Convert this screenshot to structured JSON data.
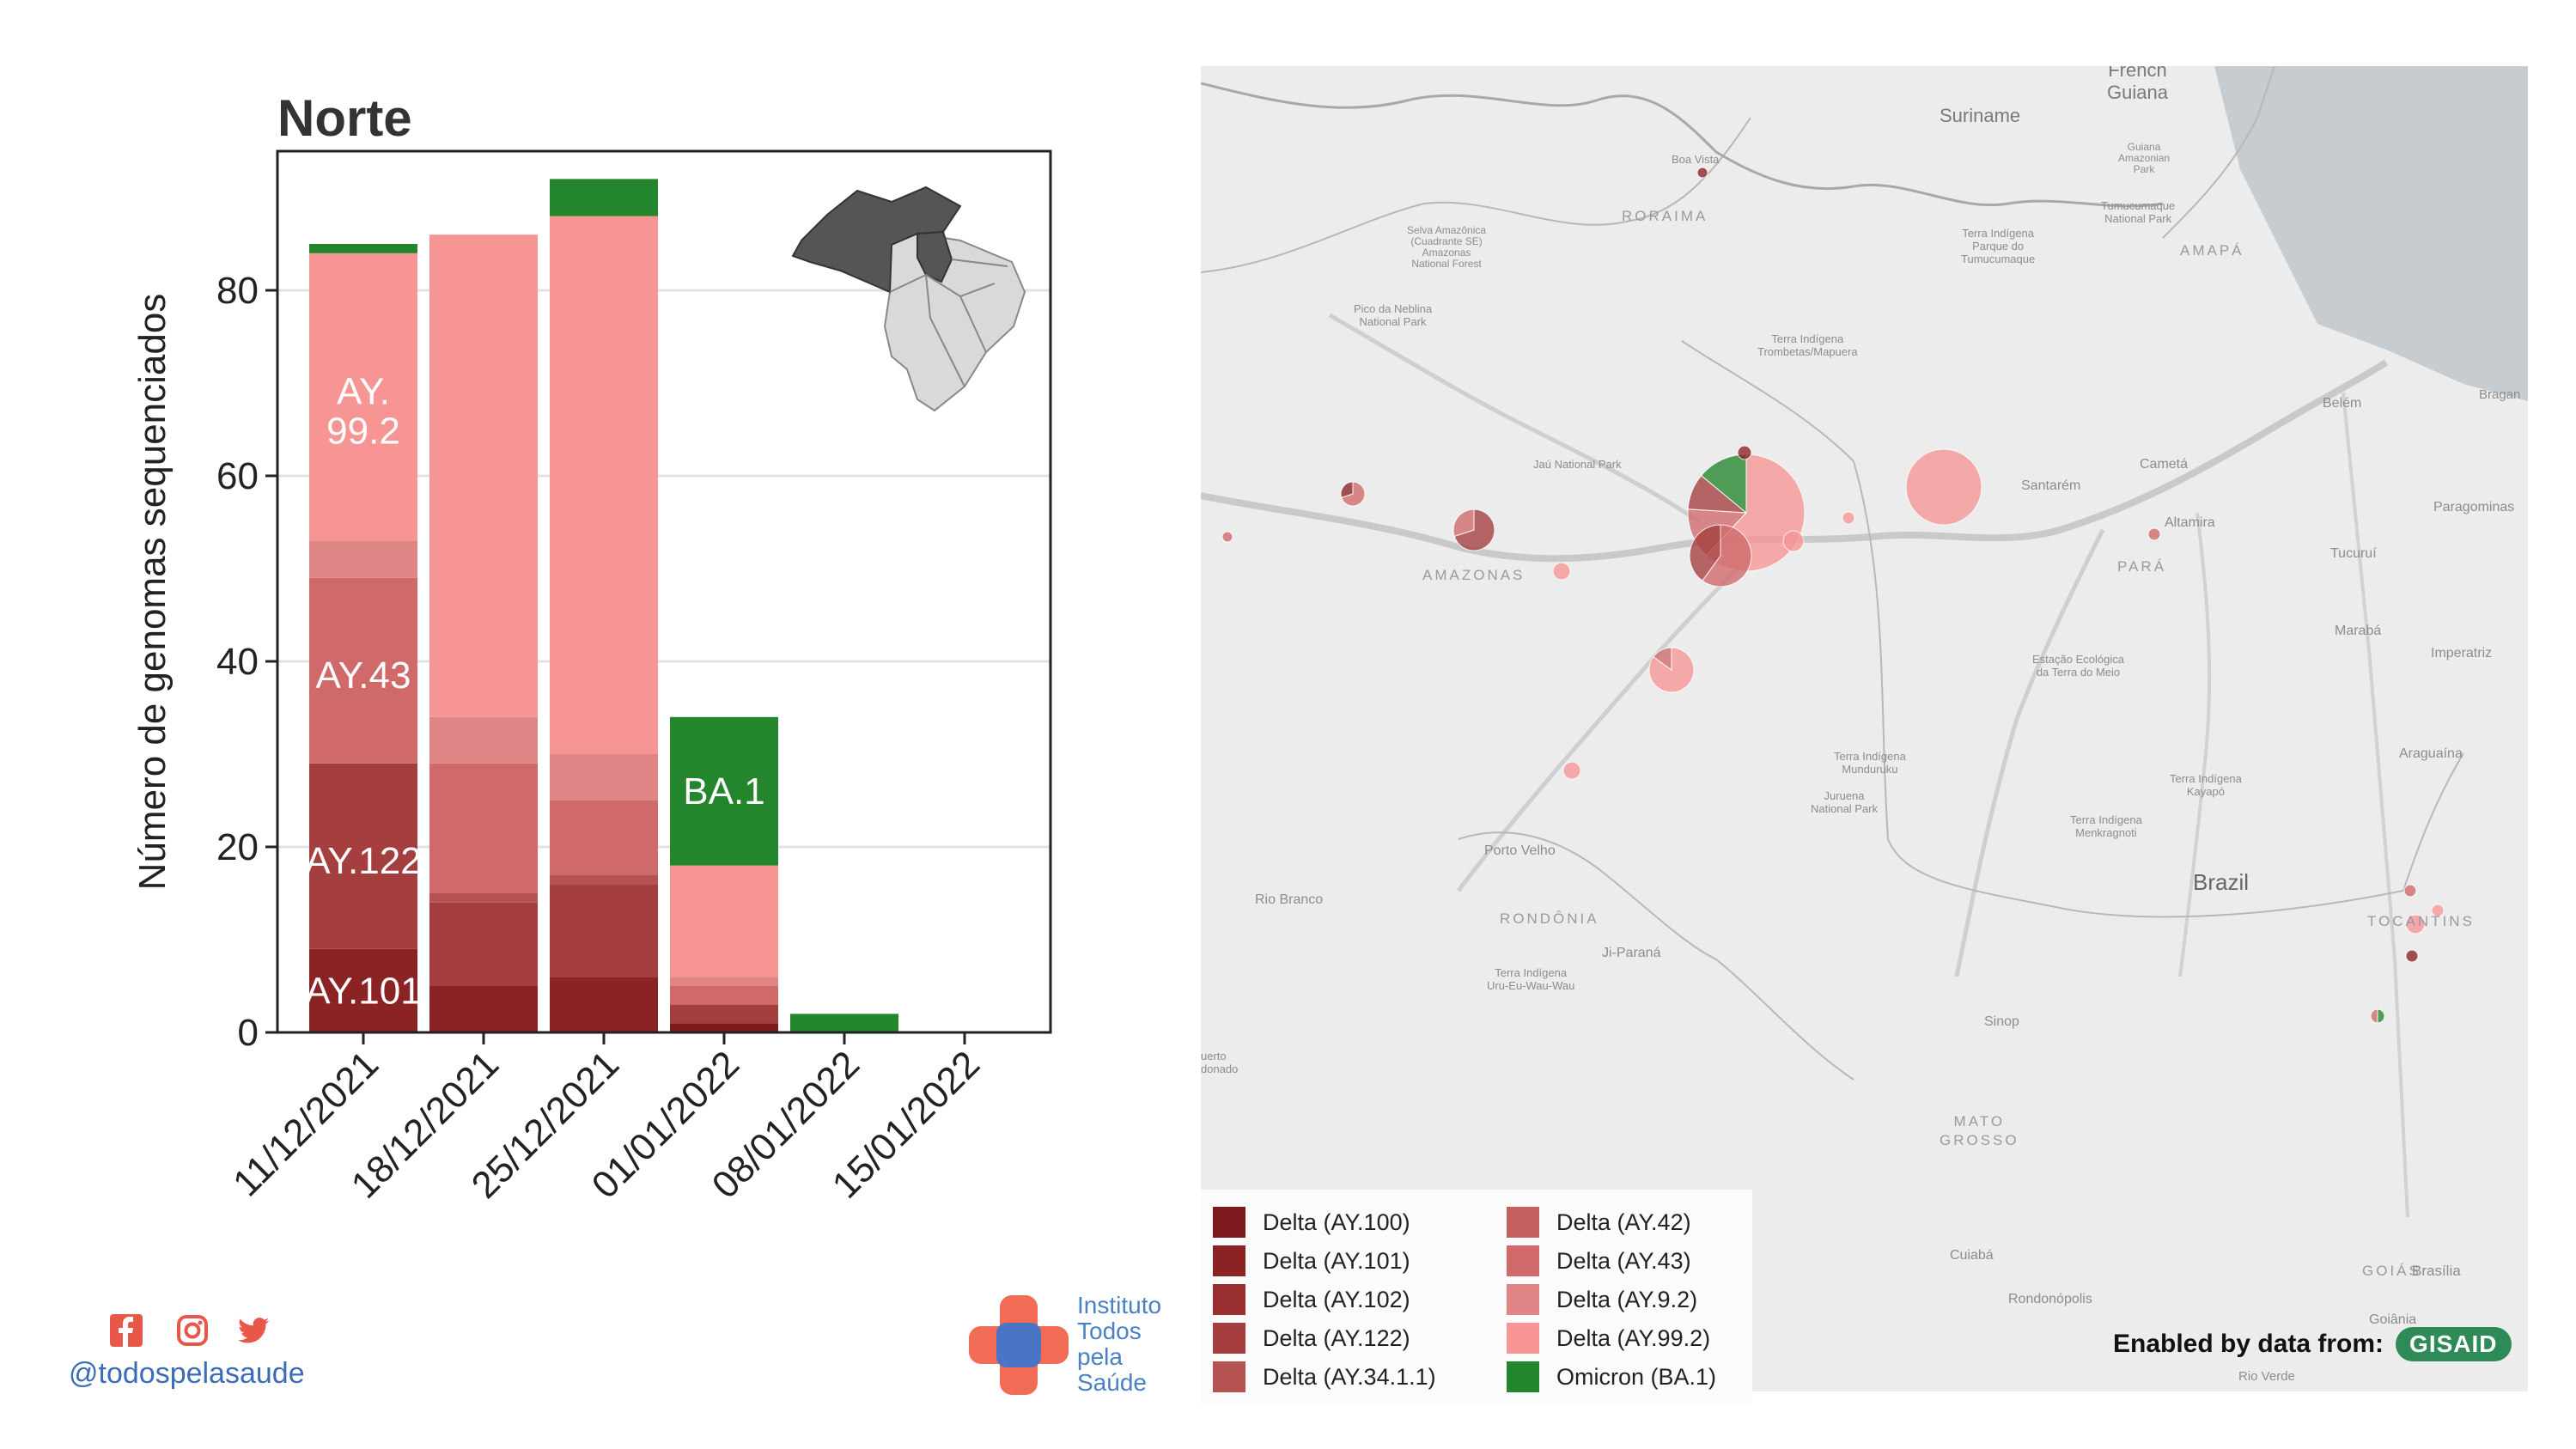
{
  "chart_data": {
    "type": "bar",
    "title": "Norte",
    "ylabel": "Número de genomas sequenciados",
    "xlabel": "",
    "ylim": [
      0,
      95
    ],
    "yticks": [
      0,
      20,
      40,
      60,
      80
    ],
    "categories": [
      "11/12/2021",
      "18/12/2021",
      "25/12/2021",
      "01/01/2022",
      "08/01/2022",
      "15/01/2022"
    ],
    "series": [
      {
        "name": "Delta (AY.100)",
        "color": "#7d1a1d",
        "values": [
          0,
          0,
          0,
          1,
          0,
          0
        ]
      },
      {
        "name": "Delta (AY.101)",
        "color": "#8b2325",
        "values": [
          9,
          5,
          6,
          0,
          0,
          0
        ]
      },
      {
        "name": "Delta (AY.102)",
        "color": "#992f30",
        "values": [
          0,
          0,
          0,
          0,
          0,
          0
        ]
      },
      {
        "name": "Delta (AY.122)",
        "color": "#a53e3e",
        "values": [
          20,
          9,
          10,
          2,
          0,
          0
        ]
      },
      {
        "name": "Delta (AY.34.1.1)",
        "color": "#b55252",
        "values": [
          0,
          1,
          1,
          0,
          0,
          0
        ]
      },
      {
        "name": "Delta (AY.42)",
        "color": "#c46060",
        "values": [
          0,
          0,
          0,
          0,
          0,
          0
        ]
      },
      {
        "name": "Delta (AY.43)",
        "color": "#d06a6a",
        "values": [
          20,
          14,
          8,
          2,
          0,
          0
        ]
      },
      {
        "name": "Delta (AY.9.2)",
        "color": "#e08585",
        "values": [
          4,
          5,
          5,
          1,
          0,
          0
        ]
      },
      {
        "name": "Delta (AY.99.2)",
        "color": "#f79595",
        "values": [
          31,
          52,
          58,
          12,
          0,
          0
        ]
      },
      {
        "name": "Omicron (BA.1)",
        "color": "#23862d",
        "values": [
          1,
          0,
          4,
          16,
          2,
          0
        ]
      }
    ],
    "annotations": [
      {
        "text_lines": [
          "AY.",
          "99.2"
        ],
        "category": "11/12/2021",
        "y": 67,
        "color": "#ffffff"
      },
      {
        "text_lines": [
          "AY.43"
        ],
        "category": "11/12/2021",
        "y": 38.5,
        "color": "#ffffff"
      },
      {
        "text_lines": [
          "AY.122"
        ],
        "category": "11/12/2021",
        "y": 18.5,
        "color": "#ffffff"
      },
      {
        "text_lines": [
          "AY.101"
        ],
        "category": "11/12/2021",
        "y": 4.5,
        "color": "#ffffff"
      },
      {
        "text_lines": [
          "BA.1"
        ],
        "category": "01/01/2022",
        "y": 26,
        "color": "#ffffff"
      }
    ],
    "grid": true,
    "inset": "map of Brazil with Norte region highlighted"
  },
  "map": {
    "places": [
      {
        "name": "French\nGuiana",
        "kind": "country"
      },
      {
        "name": "Suriname",
        "kind": "country"
      },
      {
        "name": "Boa Vista",
        "kind": "city"
      },
      {
        "name": "RORAIMA",
        "kind": "state"
      },
      {
        "name": "AMAPÁ",
        "kind": "state"
      },
      {
        "name": "AMAZONAS",
        "kind": "state"
      },
      {
        "name": "PARÁ",
        "kind": "state"
      },
      {
        "name": "RONDÔNIA",
        "kind": "state"
      },
      {
        "name": "MATO\nGROSSO",
        "kind": "state"
      },
      {
        "name": "TOCANTINS",
        "kind": "state"
      },
      {
        "name": "GOIÁS",
        "kind": "state"
      },
      {
        "name": "Brazil",
        "kind": "big"
      },
      {
        "name": "Belém",
        "kind": "city"
      },
      {
        "name": "Santarém",
        "kind": "city"
      },
      {
        "name": "Altamira",
        "kind": "city"
      },
      {
        "name": "Cametá",
        "kind": "city"
      },
      {
        "name": "Paragominas",
        "kind": "city"
      },
      {
        "name": "Tucuruí",
        "kind": "city"
      },
      {
        "name": "Marabá",
        "kind": "city"
      },
      {
        "name": "Imperatriz",
        "kind": "city"
      },
      {
        "name": "Araguaína",
        "kind": "city"
      },
      {
        "name": "Porto Velho",
        "kind": "city"
      },
      {
        "name": "Rio Branco",
        "kind": "city"
      },
      {
        "name": "Ji-Paraná",
        "kind": "city"
      },
      {
        "name": "Sinop",
        "kind": "city"
      },
      {
        "name": "Cuiabá",
        "kind": "city"
      },
      {
        "name": "Rondonópolis",
        "kind": "city"
      },
      {
        "name": "Brasília",
        "kind": "city"
      },
      {
        "name": "Goiânia",
        "kind": "city"
      },
      {
        "name": "Rio Verde",
        "kind": "city"
      },
      {
        "name": "Bragan",
        "kind": "city"
      },
      {
        "name": "Jaú National Park",
        "kind": "park"
      },
      {
        "name": "Selva Amazônica\n(Cuadrante SE)\nAmazonas\nNational Forest",
        "kind": "park"
      },
      {
        "name": "Pico da Neblina\nNational Park",
        "kind": "park"
      },
      {
        "name": "Terra Indígena\nTrombetas/Mapuera",
        "kind": "park"
      },
      {
        "name": "Terra Indígena\nParque do\nTumucumaque",
        "kind": "park"
      },
      {
        "name": "Guiana\nAmazonian\nPark",
        "kind": "park"
      },
      {
        "name": "Tumucumaque\nNational Park",
        "kind": "park"
      },
      {
        "name": "Estação Ecológica\nda Terra do Meio",
        "kind": "park"
      },
      {
        "name": "Terra Indígena\nMunduruku",
        "kind": "park"
      },
      {
        "name": "Juruena\nNational Park",
        "kind": "park"
      },
      {
        "name": "Terra Indígena\nKayapó",
        "kind": "park"
      },
      {
        "name": "Terra Indígena\nMenkragnoti",
        "kind": "park"
      },
      {
        "name": "Terra Indígena\nUru-Eu-Wau-Wau",
        "kind": "park"
      },
      {
        "name": "uerto\ndonado",
        "kind": "city"
      }
    ],
    "legend": [
      {
        "label": "Delta (AY.100)",
        "color": "#7d1a1d"
      },
      {
        "label": "Delta (AY.101)",
        "color": "#8b2325"
      },
      {
        "label": "Delta (AY.102)",
        "color": "#992f30"
      },
      {
        "label": "Delta (AY.122)",
        "color": "#a53e3e"
      },
      {
        "label": "Delta (AY.34.1.1)",
        "color": "#b55252"
      },
      {
        "label": "Delta (AY.42)",
        "color": "#c46060"
      },
      {
        "label": "Delta (AY.43)",
        "color": "#d06a6a"
      },
      {
        "label": "Delta (AY.9.2)",
        "color": "#e08585"
      },
      {
        "label": "Delta (AY.99.2)",
        "color": "#f79595"
      },
      {
        "label": "Omicron (BA.1)",
        "color": "#23862d"
      }
    ],
    "credit_text": "Enabled by data from:",
    "credit_logo": "GISAID"
  },
  "footer": {
    "social_icons": [
      "facebook-icon",
      "instagram-icon",
      "twitter-icon"
    ],
    "handle": "@todospelasaude",
    "org_lines": [
      "Instituto",
      "Todos",
      "pela",
      "Saúde"
    ]
  }
}
